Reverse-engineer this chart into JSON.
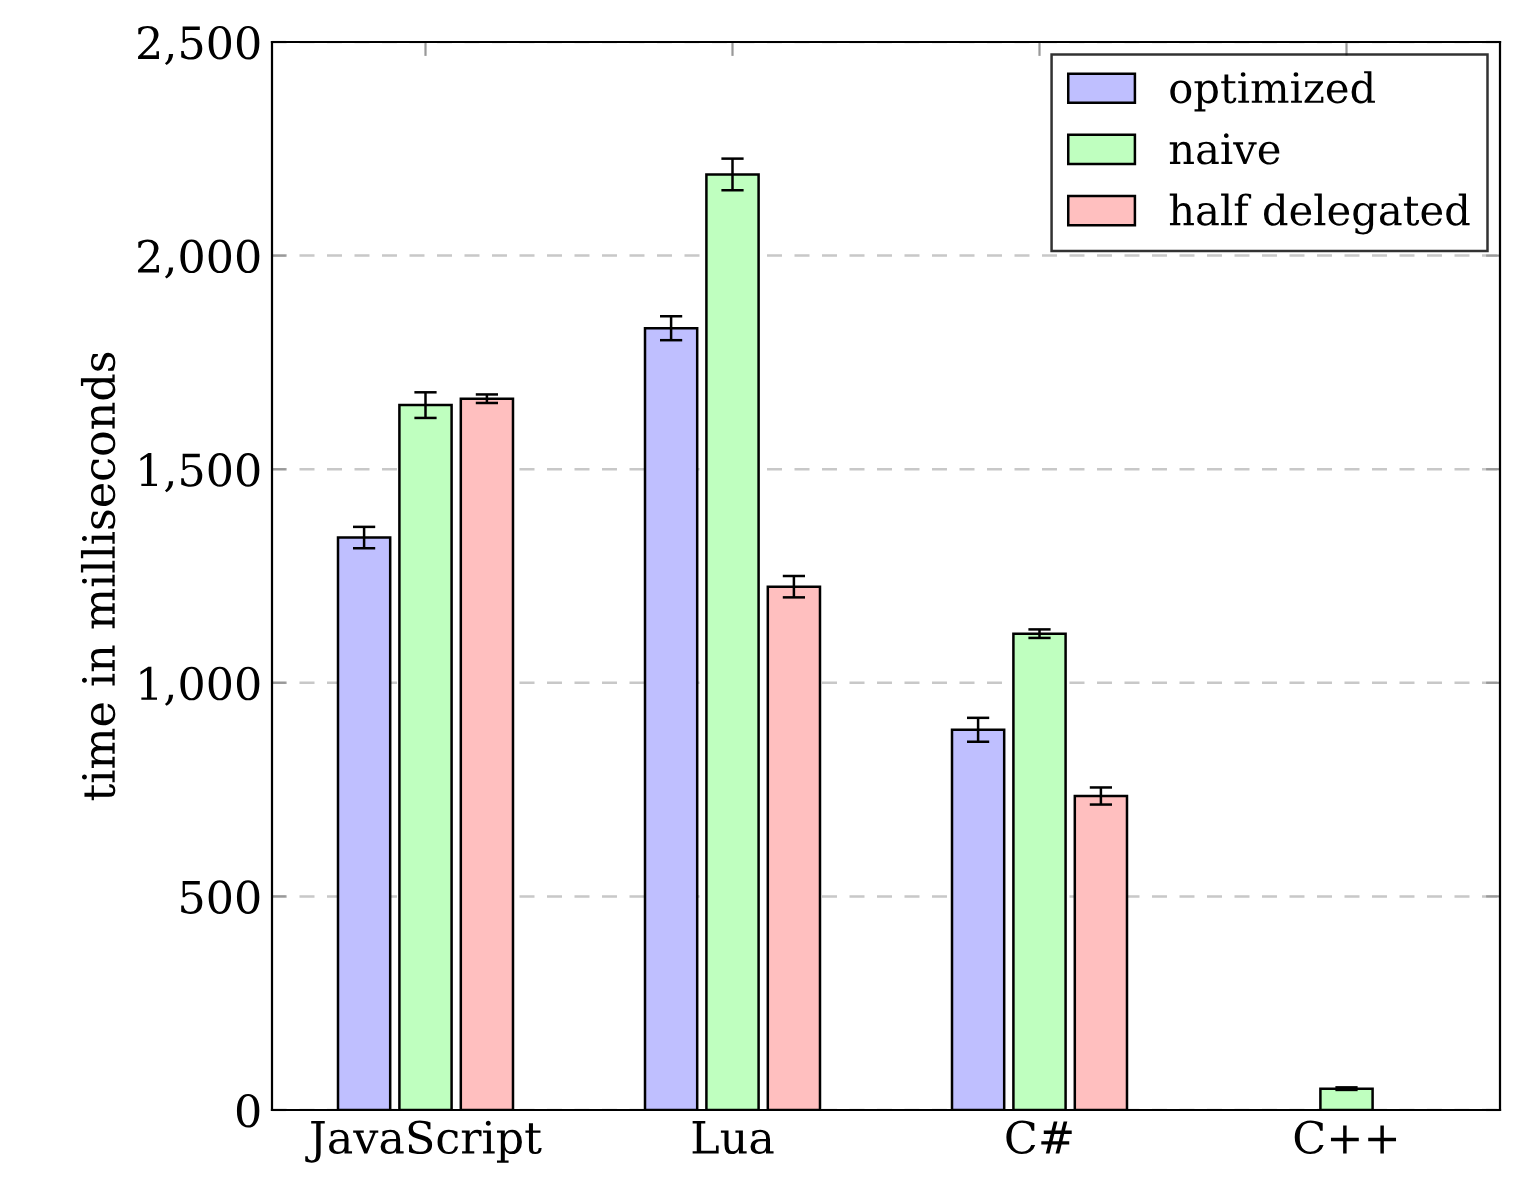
{
  "chart_data": {
    "type": "bar",
    "ylabel": "time in milliseconds",
    "categories": [
      "JavaScript",
      "Lua",
      "C#",
      "C++"
    ],
    "series": [
      {
        "name": "optimized",
        "color": "#bfbfff",
        "values": [
          1340,
          1830,
          890,
          null
        ],
        "errors": [
          25,
          28,
          28,
          null
        ]
      },
      {
        "name": "naive",
        "color": "#bfffbf",
        "values": [
          1650,
          2190,
          1115,
          50
        ],
        "errors": [
          30,
          37,
          10,
          3
        ]
      },
      {
        "name": "half delegated",
        "color": "#ffbfbf",
        "values": [
          1665,
          1225,
          735,
          null
        ],
        "errors": [
          10,
          25,
          20,
          null
        ]
      }
    ],
    "ylim": [
      0,
      2500
    ],
    "yticks": [
      {
        "value": 0,
        "label": "0"
      },
      {
        "value": 500,
        "label": "500"
      },
      {
        "value": 1000,
        "label": "1,000"
      },
      {
        "value": 1500,
        "label": "1,500"
      },
      {
        "value": 2000,
        "label": "2,000"
      },
      {
        "value": 2500,
        "label": "2,500"
      }
    ],
    "grid": "y",
    "legend": "top right"
  }
}
